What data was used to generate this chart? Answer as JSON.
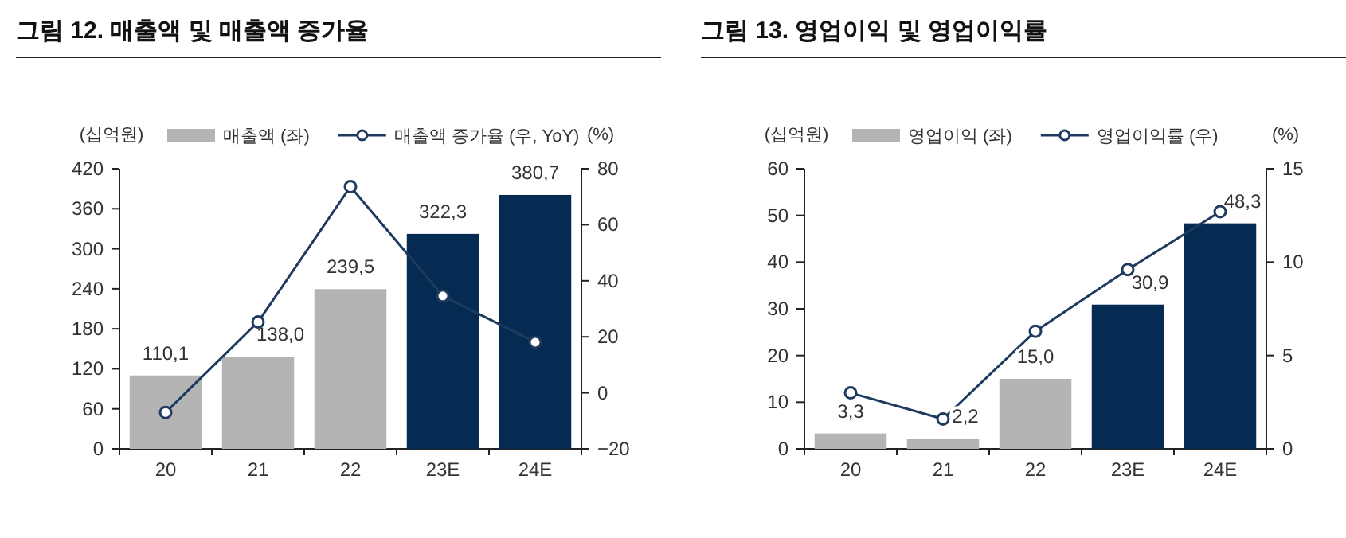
{
  "chart_data": [
    {
      "type": "bar",
      "title": "그림 12. 매출액 및 매출액 증가율",
      "ylabel": "(십억원)",
      "y2label": "(%)",
      "categories": [
        "20",
        "21",
        "22",
        "23E",
        "24E"
      ],
      "legend": "top",
      "series": [
        {
          "name": "매출액 (좌)",
          "color": "#b4b4b4",
          "colors": [
            "#b4b4b4",
            "#b4b4b4",
            "#b4b4b4",
            "#062b52",
            "#062b52"
          ],
          "values": [
            110.1,
            138.0,
            239.5,
            322.3,
            380.7
          ],
          "value_labels": [
            "110,1",
            "138,0",
            "239,5",
            "322,3",
            "380,7"
          ]
        },
        {
          "name": "매출액 증가율 (우, YoY)",
          "type": "line",
          "axis": "y2",
          "color": "#1f3a5f",
          "marker": "circle",
          "values": [
            -7,
            25.3,
            73.6,
            34.6,
            18.1
          ]
        }
      ],
      "ylim": [
        0,
        420
      ],
      "yticks": [
        0,
        60,
        120,
        180,
        240,
        300,
        360,
        420
      ],
      "y2lim": [
        -20,
        80
      ],
      "y2ticks": [
        {
          "value": -20,
          "label": "−20"
        },
        0,
        20,
        40,
        60,
        80
      ]
    },
    {
      "type": "bar",
      "title": "그림 13. 영업이익 및 영업이익률",
      "ylabel": "(십억원)",
      "y2label": "(%)",
      "categories": [
        "20",
        "21",
        "22",
        "23E",
        "24E"
      ],
      "legend": "top",
      "series": [
        {
          "name": "영업이익 (좌)",
          "color": "#b4b4b4",
          "colors": [
            "#b4b4b4",
            "#b4b4b4",
            "#b4b4b4",
            "#062b52",
            "#062b52"
          ],
          "values": [
            3.3,
            2.2,
            15.0,
            30.9,
            48.3
          ],
          "value_labels": [
            "3,3",
            "2,2",
            "15,0",
            "30,9",
            "48,3"
          ]
        },
        {
          "name": "영업이익률 (우)",
          "type": "line",
          "axis": "y2",
          "color": "#1f3a5f",
          "marker": "circle",
          "values": [
            3.0,
            1.6,
            6.3,
            9.6,
            12.7
          ]
        }
      ],
      "ylim": [
        0,
        60
      ],
      "yticks": [
        0,
        10,
        20,
        30,
        40,
        50,
        60
      ],
      "y2lim": [
        0,
        15
      ],
      "y2ticks": [
        0,
        5,
        10,
        15
      ]
    }
  ]
}
